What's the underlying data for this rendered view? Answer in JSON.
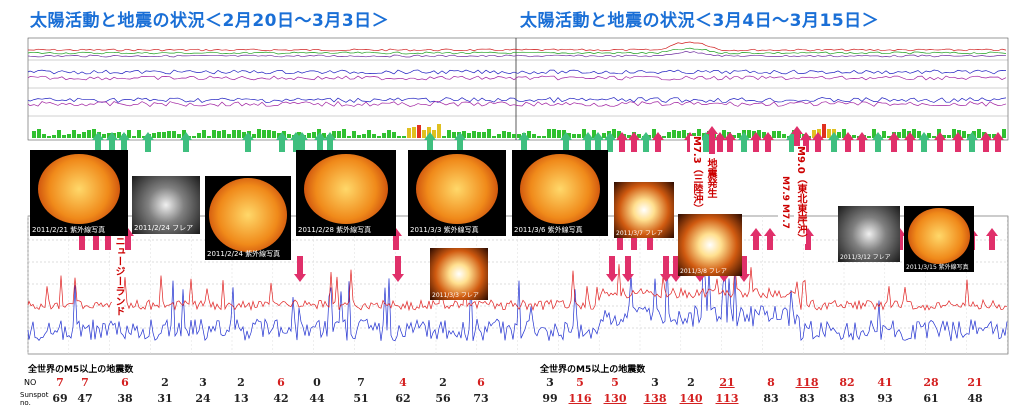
{
  "titles": {
    "left": "太陽活動と地震の状況＜2月20日～3月3日＞",
    "right": "太陽活動と地震の状況＜3月4日～3月15日＞"
  },
  "photo_captions": [
    "2011/2/21 紫外線写真",
    "2011/2/24 フレア",
    "2011/2/24 紫外線写真",
    "2011/2/28 紫外線写真",
    "2011/3/3 紫外線写真",
    "2011/3/6 紫外線写真",
    "2011/3/3 フレア",
    "2011/3/7 フレア",
    "2011/3/8 フレア",
    "2011/3/12 フレア",
    "2011/3/15 紫外線写真"
  ],
  "annotations": {
    "nz": "ニュージーランド",
    "m73": "M7.3（三陸沖）",
    "foreshock": "地震発生",
    "m9": "M9.0（東北東岸沖）",
    "m7x": "M7.9 M7.7"
  },
  "table": {
    "header_left": "全世界のM5以上の地震数",
    "header_right": "全世界のM5以上の地震数",
    "no_label": "NO",
    "sunspot_label": "Sunspot no.",
    "left_no": [
      "7",
      "7",
      "6",
      "2",
      "3",
      "2",
      "6",
      "0",
      "7",
      "4",
      "2",
      "6"
    ],
    "left_sun": [
      "69",
      "47",
      "38",
      "31",
      "24",
      "13",
      "42",
      "44",
      "51",
      "62",
      "56",
      "73"
    ],
    "right_no": [
      "3",
      "5",
      "5",
      "3",
      "2",
      "21",
      "8",
      "118",
      "82",
      "41",
      "28",
      "21"
    ],
    "right_sun": [
      "99",
      "116",
      "130",
      "138",
      "140",
      "113",
      "83",
      "83",
      "83",
      "93",
      "61",
      "48"
    ]
  },
  "colors": {
    "title": "#1a6fd6",
    "arrow_green": "#3fbf7f",
    "arrow_red": "#e0306a",
    "label_red": "#cc0000",
    "xray_red": "#e02020",
    "xray_blue": "#2030d0"
  }
}
